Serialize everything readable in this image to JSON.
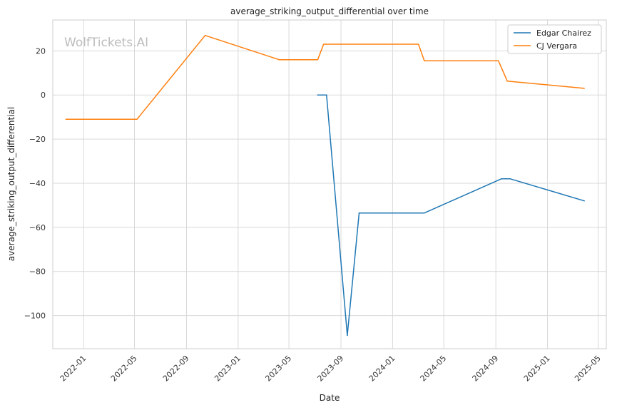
{
  "watermark": "WolfTickets.AI",
  "chart_data": {
    "type": "line",
    "title": "average_striking_output_differential over time",
    "xlabel": "Date",
    "ylabel": "average_striking_output_differential",
    "x_ticks": [
      "2022-01",
      "2022-05",
      "2022-09",
      "2023-01",
      "2023-05",
      "2023-09",
      "2024-01",
      "2024-05",
      "2024-09",
      "2025-01",
      "2025-05"
    ],
    "y_ticks": [
      20,
      0,
      -20,
      -40,
      -60,
      -80,
      -100
    ],
    "y_tick_labels": [
      "20",
      "0",
      "−20",
      "−40",
      "−60",
      "−80",
      "−100"
    ],
    "xlim": [
      "2021-10-20",
      "2025-05-20"
    ],
    "ylim": [
      -115,
      34
    ],
    "grid": true,
    "legend_position": "top-right",
    "series": [
      {
        "name": "Edgar Chairez",
        "color": "#1f77b4",
        "points": [
          {
            "x": "2023-07-08",
            "y": 0
          },
          {
            "x": "2023-07-29",
            "y": 0
          },
          {
            "x": "2023-09-16",
            "y": -109
          },
          {
            "x": "2023-10-14",
            "y": -53.5
          },
          {
            "x": "2024-03-16",
            "y": -53.5
          },
          {
            "x": "2024-09-14",
            "y": -38
          },
          {
            "x": "2024-10-05",
            "y": -38
          },
          {
            "x": "2025-03-29",
            "y": -48
          }
        ]
      },
      {
        "name": "CJ Vergara",
        "color": "#ff7f0e",
        "points": [
          {
            "x": "2021-11-20",
            "y": -11
          },
          {
            "x": "2022-05-07",
            "y": -11
          },
          {
            "x": "2022-10-15",
            "y": 27
          },
          {
            "x": "2023-04-08",
            "y": 16
          },
          {
            "x": "2023-07-08",
            "y": 16
          },
          {
            "x": "2023-07-22",
            "y": 23
          },
          {
            "x": "2024-03-02",
            "y": 23
          },
          {
            "x": "2024-03-16",
            "y": 15.5
          },
          {
            "x": "2024-09-07",
            "y": 15.5
          },
          {
            "x": "2024-09-28",
            "y": 6.3
          },
          {
            "x": "2025-03-29",
            "y": 3
          }
        ]
      }
    ]
  }
}
